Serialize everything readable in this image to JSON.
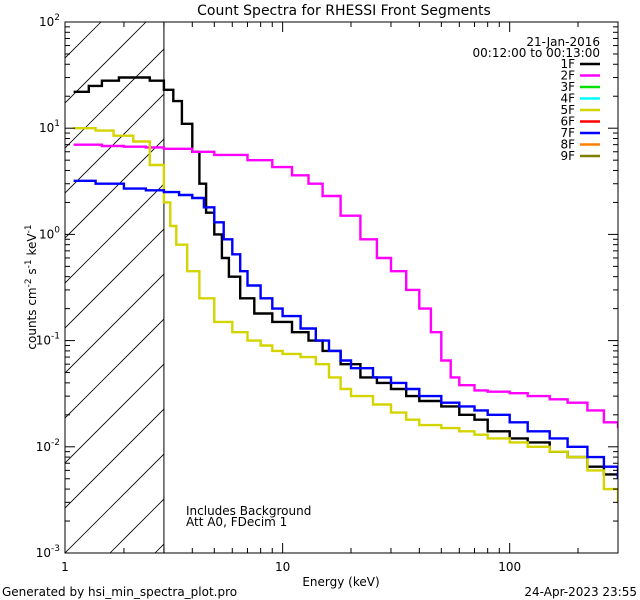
{
  "chart_data": {
    "type": "line",
    "title": "Count Spectra for RHESSI Front Segments",
    "xlabel": "Energy (keV)",
    "ylabel_parts": [
      "counts cm",
      "-2",
      " s",
      "-1",
      " keV",
      "-1"
    ],
    "x_scale": "log",
    "y_scale": "log",
    "xlim": [
      1.1,
      300
    ],
    "ylim": [
      0.001,
      100
    ],
    "x_tick_labels": [
      {
        "value": 1,
        "label": "1"
      },
      {
        "value": 10,
        "label": "10"
      },
      {
        "value": 100,
        "label": "100"
      }
    ],
    "y_tick_labels": [
      {
        "value": 100,
        "base": "10",
        "exp": "2"
      },
      {
        "value": 10,
        "base": "10",
        "exp": "1"
      },
      {
        "value": 1,
        "base": "10",
        "exp": "0"
      },
      {
        "value": 0.1,
        "base": "10",
        "exp": "-1"
      },
      {
        "value": 0.01,
        "base": "10",
        "exp": "-2"
      },
      {
        "value": 0.001,
        "base": "10",
        "exp": "-3"
      }
    ],
    "date": "21-Jan-2016",
    "time_range": "00:12:00 to 00:13:00",
    "excluded_region_keV": [
      1.1,
      3.0
    ],
    "annotations": [
      "Includes Background",
      "Att A0, FDecim 1"
    ],
    "legend": [
      {
        "name": "1F",
        "color": "#000000"
      },
      {
        "name": "2F",
        "color": "#ff00ff"
      },
      {
        "name": "3F",
        "color": "#00e000"
      },
      {
        "name": "4F",
        "color": "#00ffff"
      },
      {
        "name": "5F",
        "color": "#d4d400"
      },
      {
        "name": "6F",
        "color": "#ff0000"
      },
      {
        "name": "7F",
        "color": "#0000ff"
      },
      {
        "name": "8F",
        "color": "#ff7f00"
      },
      {
        "name": "9F",
        "color": "#7f7f00"
      }
    ],
    "series": [
      {
        "name": "1F",
        "color": "#000000",
        "points": [
          [
            1.2,
            22
          ],
          [
            1.4,
            25
          ],
          [
            1.6,
            28
          ],
          [
            1.9,
            30
          ],
          [
            2.3,
            30
          ],
          [
            2.6,
            28
          ],
          [
            3.0,
            23
          ],
          [
            3.3,
            18
          ],
          [
            3.6,
            11
          ],
          [
            4.0,
            6
          ],
          [
            4.3,
            3
          ],
          [
            4.6,
            1.6
          ],
          [
            5.0,
            1.0
          ],
          [
            5.4,
            0.6
          ],
          [
            5.8,
            0.4
          ],
          [
            6.5,
            0.25
          ],
          [
            7.5,
            0.18
          ],
          [
            9,
            0.15
          ],
          [
            11,
            0.12
          ],
          [
            13,
            0.1
          ],
          [
            15,
            0.08
          ],
          [
            18,
            0.06
          ],
          [
            22,
            0.045
          ],
          [
            26,
            0.04
          ],
          [
            30,
            0.035
          ],
          [
            35,
            0.03
          ],
          [
            40,
            0.027
          ],
          [
            50,
            0.024
          ],
          [
            60,
            0.02
          ],
          [
            70,
            0.018
          ],
          [
            80,
            0.014
          ],
          [
            100,
            0.012
          ],
          [
            120,
            0.011
          ],
          [
            150,
            0.009
          ],
          [
            180,
            0.008
          ],
          [
            220,
            0.0065
          ],
          [
            260,
            0.0055
          ],
          [
            300,
            0.005
          ]
        ]
      },
      {
        "name": "2F",
        "color": "#ff00ff",
        "points": [
          [
            1.2,
            7
          ],
          [
            1.6,
            6.8
          ],
          [
            2,
            6.7
          ],
          [
            2.5,
            6.6
          ],
          [
            3,
            6.4
          ],
          [
            4,
            6.0
          ],
          [
            5,
            5.6
          ],
          [
            7,
            5.0
          ],
          [
            9,
            4.3
          ],
          [
            11,
            3.6
          ],
          [
            13,
            3.0
          ],
          [
            15,
            2.3
          ],
          [
            18,
            1.5
          ],
          [
            22,
            0.9
          ],
          [
            26,
            0.6
          ],
          [
            30,
            0.45
          ],
          [
            35,
            0.3
          ],
          [
            40,
            0.2
          ],
          [
            45,
            0.12
          ],
          [
            50,
            0.065
          ],
          [
            55,
            0.045
          ],
          [
            60,
            0.038
          ],
          [
            70,
            0.034
          ],
          [
            80,
            0.033
          ],
          [
            100,
            0.032
          ],
          [
            120,
            0.03
          ],
          [
            150,
            0.028
          ],
          [
            180,
            0.026
          ],
          [
            220,
            0.022
          ],
          [
            260,
            0.017
          ],
          [
            300,
            0.015
          ]
        ]
      },
      {
        "name": "5F",
        "color": "#d4d400",
        "points": [
          [
            1.2,
            10
          ],
          [
            1.5,
            9.5
          ],
          [
            1.8,
            8.5
          ],
          [
            2.2,
            7.5
          ],
          [
            2.6,
            4.5
          ],
          [
            3.0,
            2.0
          ],
          [
            3.2,
            1.2
          ],
          [
            3.4,
            0.8
          ],
          [
            3.8,
            0.45
          ],
          [
            4.3,
            0.25
          ],
          [
            5,
            0.15
          ],
          [
            6,
            0.12
          ],
          [
            7,
            0.1
          ],
          [
            8,
            0.09
          ],
          [
            9,
            0.08
          ],
          [
            10,
            0.075
          ],
          [
            12,
            0.07
          ],
          [
            14,
            0.06
          ],
          [
            16,
            0.045
          ],
          [
            18,
            0.035
          ],
          [
            20,
            0.03
          ],
          [
            25,
            0.025
          ],
          [
            30,
            0.021
          ],
          [
            35,
            0.018
          ],
          [
            40,
            0.016
          ],
          [
            50,
            0.015
          ],
          [
            60,
            0.014
          ],
          [
            70,
            0.013
          ],
          [
            80,
            0.012
          ],
          [
            100,
            0.011
          ],
          [
            120,
            0.01
          ],
          [
            150,
            0.009
          ],
          [
            180,
            0.008
          ],
          [
            220,
            0.006
          ],
          [
            260,
            0.004
          ],
          [
            300,
            0.003
          ]
        ]
      },
      {
        "name": "7F",
        "color": "#0000ff",
        "points": [
          [
            1.2,
            3.2
          ],
          [
            1.5,
            3.0
          ],
          [
            2,
            2.7
          ],
          [
            2.5,
            2.6
          ],
          [
            3,
            2.5
          ],
          [
            3.5,
            2.35
          ],
          [
            4,
            2.2
          ],
          [
            4.5,
            1.8
          ],
          [
            5,
            1.3
          ],
          [
            5.5,
            0.9
          ],
          [
            6,
            0.65
          ],
          [
            6.5,
            0.45
          ],
          [
            7,
            0.33
          ],
          [
            8,
            0.25
          ],
          [
            9,
            0.2
          ],
          [
            10,
            0.17
          ],
          [
            12,
            0.13
          ],
          [
            14,
            0.1
          ],
          [
            16,
            0.08
          ],
          [
            18,
            0.065
          ],
          [
            20,
            0.055
          ],
          [
            25,
            0.045
          ],
          [
            30,
            0.04
          ],
          [
            35,
            0.035
          ],
          [
            40,
            0.03
          ],
          [
            50,
            0.026
          ],
          [
            60,
            0.024
          ],
          [
            70,
            0.022
          ],
          [
            80,
            0.02
          ],
          [
            100,
            0.017
          ],
          [
            120,
            0.014
          ],
          [
            150,
            0.012
          ],
          [
            180,
            0.01
          ],
          [
            220,
            0.008
          ],
          [
            260,
            0.0065
          ],
          [
            300,
            0.005
          ]
        ]
      }
    ]
  },
  "footer": {
    "generated_by": "Generated by hsi_min_spectra_plot.pro",
    "timestamp": "24-Apr-2023 23:55"
  }
}
